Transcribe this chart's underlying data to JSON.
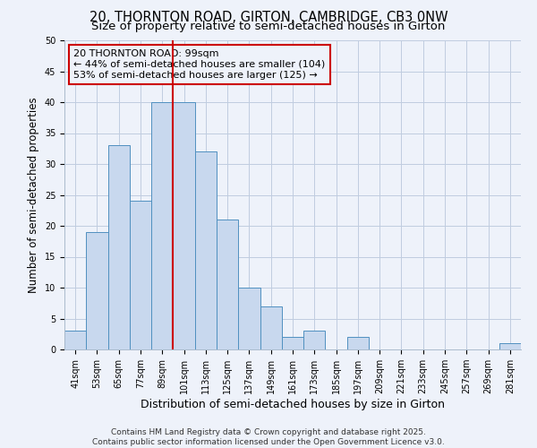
{
  "title": "20, THORNTON ROAD, GIRTON, CAMBRIDGE, CB3 0NW",
  "subtitle": "Size of property relative to semi-detached houses in Girton",
  "xlabel": "Distribution of semi-detached houses by size in Girton",
  "ylabel": "Number of semi-detached properties",
  "categories": [
    "41sqm",
    "53sqm",
    "65sqm",
    "77sqm",
    "89sqm",
    "101sqm",
    "113sqm",
    "125sqm",
    "137sqm",
    "149sqm",
    "161sqm",
    "173sqm",
    "185sqm",
    "197sqm",
    "209sqm",
    "221sqm",
    "233sqm",
    "245sqm",
    "257sqm",
    "269sqm",
    "281sqm"
  ],
  "values": [
    3,
    19,
    33,
    24,
    40,
    40,
    32,
    21,
    10,
    7,
    2,
    3,
    0,
    2,
    0,
    0,
    0,
    0,
    0,
    0,
    1
  ],
  "bar_color": "#c8d8ee",
  "bar_edge_color": "#5090c0",
  "grid_color": "#c0cce0",
  "bg_color": "#eef2fa",
  "annotation_line1": "20 THORNTON ROAD: 99sqm",
  "annotation_line2": "← 44% of semi-detached houses are smaller (104)",
  "annotation_line3": "53% of semi-detached houses are larger (125) →",
  "vline_index": 5,
  "vline_color": "#cc0000",
  "annotation_box_color": "#cc0000",
  "ylim": [
    0,
    50
  ],
  "yticks": [
    0,
    5,
    10,
    15,
    20,
    25,
    30,
    35,
    40,
    45,
    50
  ],
  "footer_line1": "Contains HM Land Registry data © Crown copyright and database right 2025.",
  "footer_line2": "Contains public sector information licensed under the Open Government Licence v3.0.",
  "title_fontsize": 10.5,
  "subtitle_fontsize": 9.5,
  "ylabel_fontsize": 8.5,
  "xlabel_fontsize": 9,
  "tick_fontsize": 7,
  "annot_fontsize": 8,
  "footer_fontsize": 6.5
}
